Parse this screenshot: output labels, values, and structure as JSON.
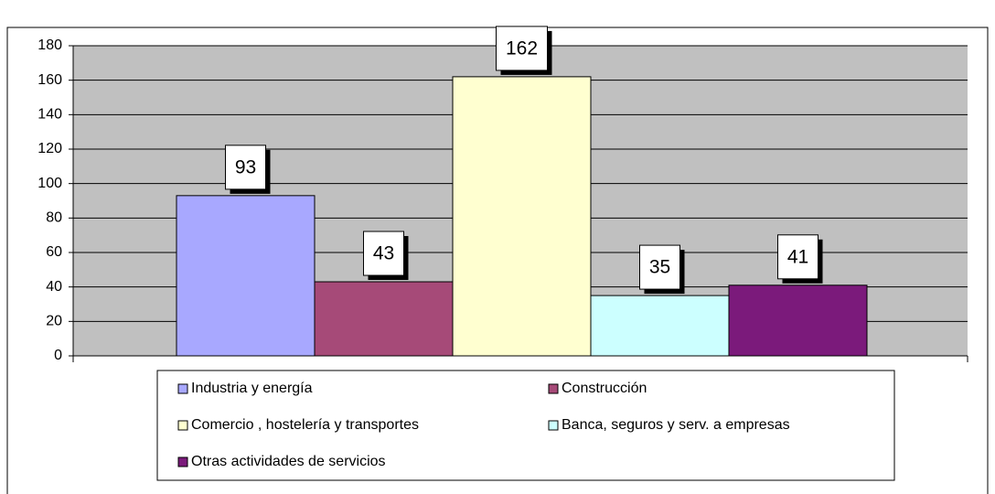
{
  "chart_data": {
    "type": "bar",
    "series": [
      {
        "name": "Industria y energía",
        "color": "#a8a8ff",
        "values": [
          93
        ]
      },
      {
        "name": "Construcción",
        "color": "#a64a78",
        "values": [
          43
        ]
      },
      {
        "name": "Comercio , hostelería y transportes",
        "color": "#ffffd0",
        "values": [
          162
        ]
      },
      {
        "name": "Banca, seguros y serv. a empresas",
        "color": "#ccffff",
        "values": [
          35
        ]
      },
      {
        "name": "Otras actividades de servicios",
        "color": "#7b1a7b",
        "values": [
          41
        ]
      }
    ],
    "ylim": [
      0,
      180
    ],
    "yticks": [
      0,
      20,
      40,
      60,
      80,
      100,
      120,
      140,
      160,
      180
    ],
    "grid": true,
    "legend": "bottom",
    "plot_background": "#c0c0c0"
  }
}
